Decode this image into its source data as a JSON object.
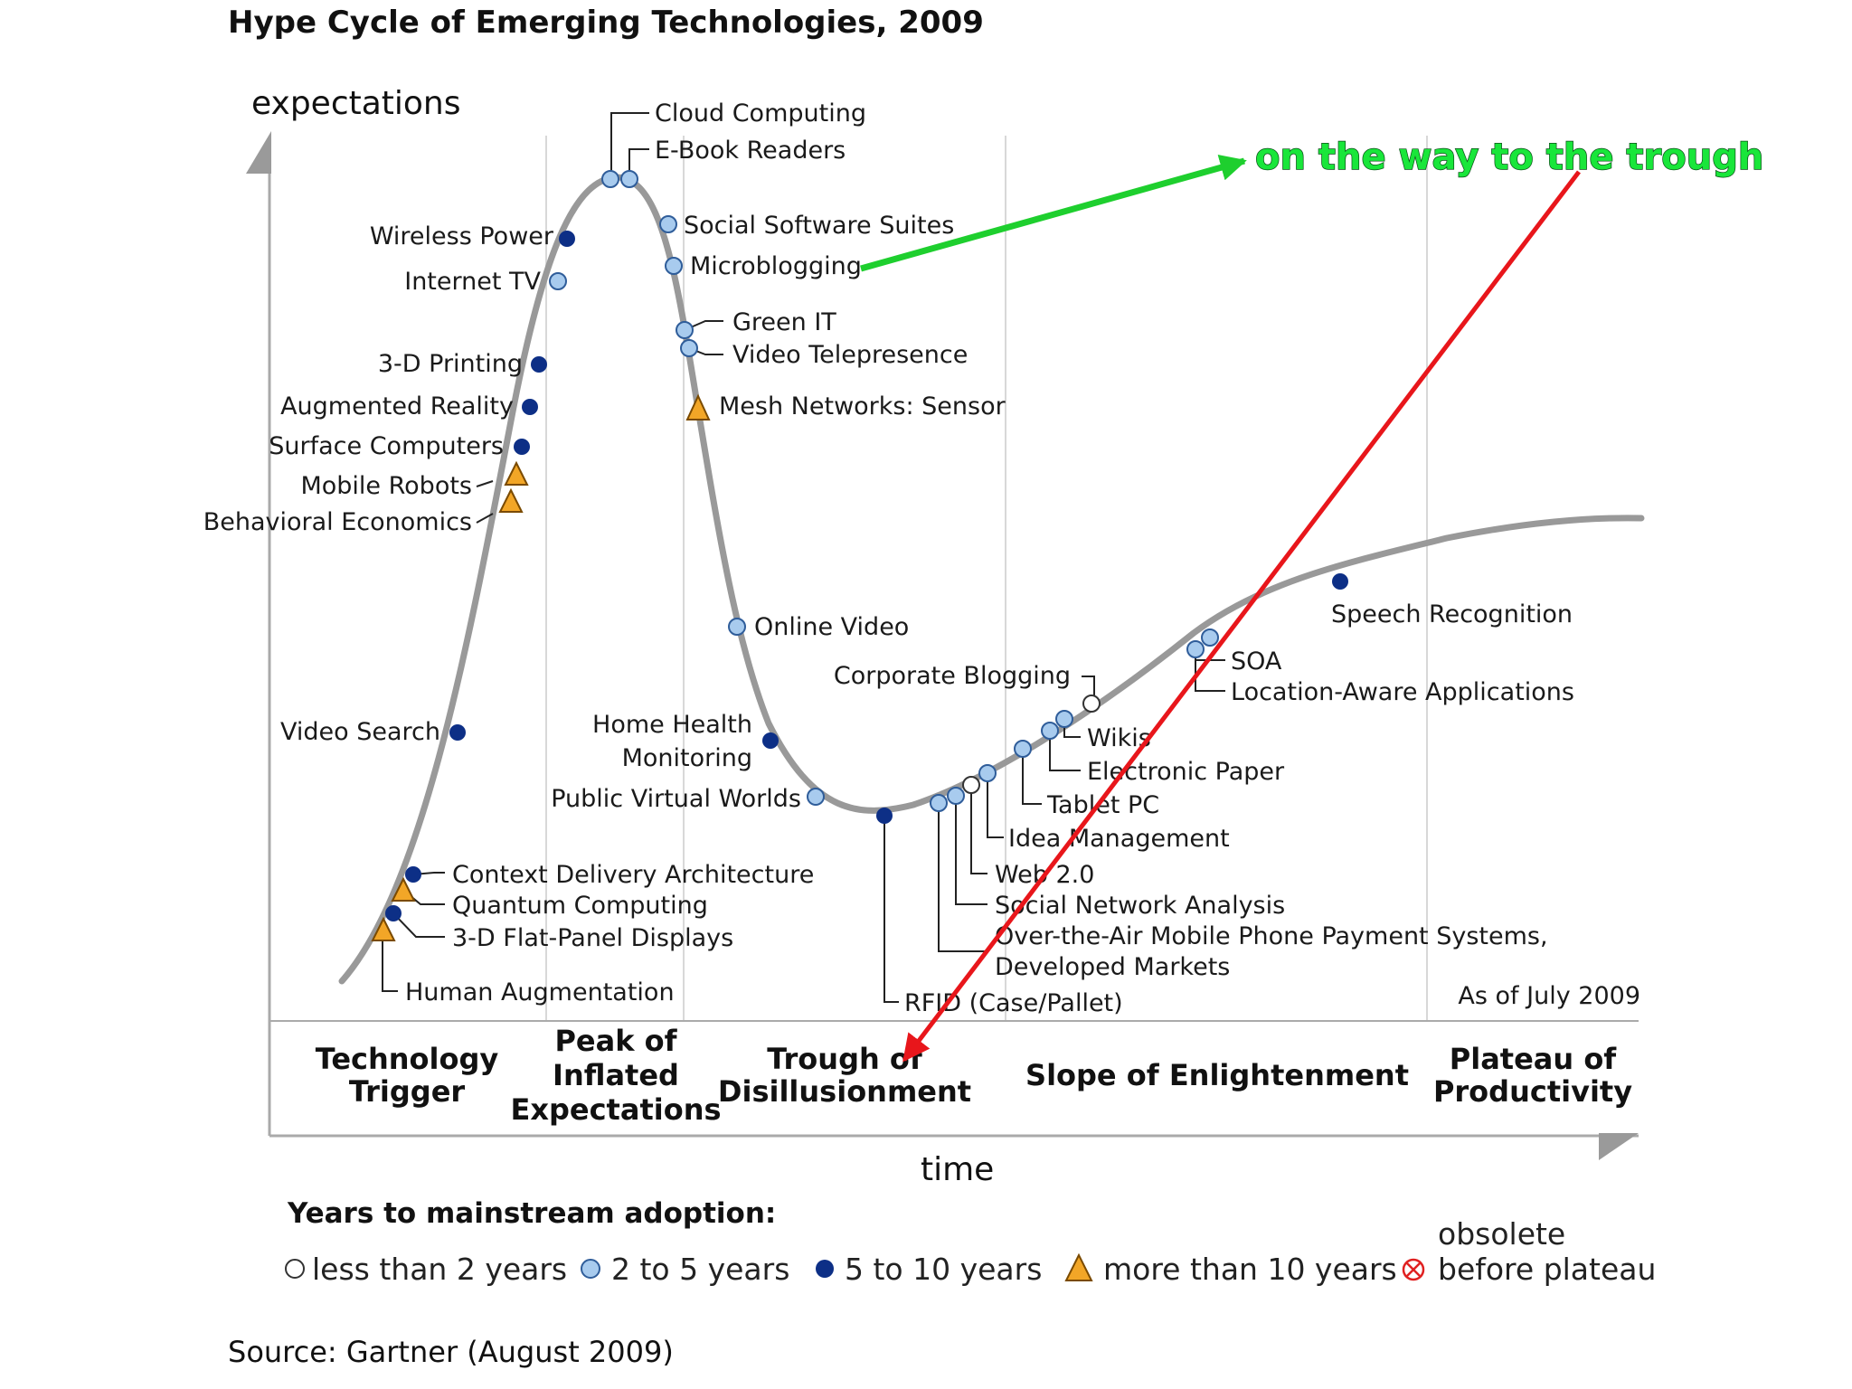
{
  "title": "Hype Cycle of Emerging Technologies, 2009",
  "y_axis_label": "expectations",
  "x_axis_label": "time",
  "as_of": "As of July 2009",
  "phases": {
    "trigger": [
      "Technology",
      "Trigger"
    ],
    "peak": [
      "Peak of",
      "Inflated",
      "Expectations"
    ],
    "trough": [
      "Trough of",
      "Disillusionment"
    ],
    "slope": [
      "Slope of Enlightenment"
    ],
    "plateau": [
      "Plateau of",
      "Productivity"
    ]
  },
  "technologies": {
    "cloud_computing": {
      "label": "Cloud Computing",
      "category": "2 to 5 years"
    },
    "ebook_readers": {
      "label": "E-Book Readers",
      "category": "2 to 5 years"
    },
    "social_software_suites": {
      "label": "Social Software Suites",
      "category": "2 to 5 years"
    },
    "microblogging": {
      "label": "Microblogging",
      "category": "2 to 5 years"
    },
    "green_it": {
      "label": "Green IT",
      "category": "2 to 5 years"
    },
    "video_telepresence": {
      "label": "Video Telepresence",
      "category": "2 to 5 years"
    },
    "mesh_networks": {
      "label": "Mesh Networks: Sensor",
      "category": "more than 10 years"
    },
    "wireless_power": {
      "label": "Wireless Power",
      "category": "5 to 10 years"
    },
    "internet_tv": {
      "label": "Internet TV",
      "category": "2 to 5 years"
    },
    "printing_3d": {
      "label": "3-D Printing",
      "category": "5 to 10 years"
    },
    "augmented_reality": {
      "label": "Augmented Reality",
      "category": "5 to 10 years"
    },
    "surface_computers": {
      "label": "Surface Computers",
      "category": "5 to 10 years"
    },
    "mobile_robots": {
      "label": "Mobile Robots",
      "category": "more than 10 years"
    },
    "behavioral_economics": {
      "label": "Behavioral Economics",
      "category": "more than 10 years"
    },
    "video_search": {
      "label": "Video Search",
      "category": "5 to 10 years"
    },
    "context_delivery": {
      "label": "Context Delivery Architecture",
      "category": "5 to 10 years"
    },
    "quantum_computing": {
      "label": "Quantum Computing",
      "category": "more than 10 years"
    },
    "flat_panel_3d": {
      "label": "3-D Flat-Panel Displays",
      "category": "5 to 10 years"
    },
    "human_augmentation": {
      "label": "Human Augmentation",
      "category": "more than 10 years"
    },
    "online_video": {
      "label": "Online Video",
      "category": "2 to 5 years"
    },
    "home_health_monitoring": {
      "label_lines": [
        "Home Health",
        "Monitoring"
      ],
      "category": "5 to 10 years"
    },
    "public_virtual_worlds": {
      "label": "Public Virtual Worlds",
      "category": "2 to 5 years"
    },
    "rfid": {
      "label": "RFID (Case/Pallet)",
      "category": "5 to 10 years"
    },
    "corporate_blogging": {
      "label": "Corporate Blogging",
      "category": "less than 2 years"
    },
    "wikis": {
      "label": "Wikis",
      "category": "2 to 5 years"
    },
    "electronic_paper": {
      "label": "Electronic Paper",
      "category": "2 to 5 years"
    },
    "tablet_pc": {
      "label": "Tablet PC",
      "category": "2 to 5 years"
    },
    "idea_management": {
      "label": "Idea Management",
      "category": "2 to 5 years"
    },
    "web_20": {
      "label": "Web 2.0",
      "category": "less than 2 years"
    },
    "social_network_analysis": {
      "label": "Social Network Analysis",
      "category": "2 to 5 years"
    },
    "ota_payments": {
      "label_lines": [
        "Over-the-Air Mobile Phone Payment Systems,",
        "Developed Markets"
      ],
      "category": "2 to 5 years"
    },
    "soa": {
      "label": "SOA",
      "category": "2 to 5 years"
    },
    "location_aware": {
      "label": "Location-Aware Applications",
      "category": "2 to 5 years"
    },
    "speech_recognition": {
      "label": "Speech Recognition",
      "category": "5 to 10 years"
    }
  },
  "annotation": "on the way to the trough",
  "legend": {
    "title": "Years to mainstream adoption:",
    "items": [
      {
        "label": "less than 2 years"
      },
      {
        "label": "2 to 5 years"
      },
      {
        "label": "5 to 10 years"
      },
      {
        "label": "more than 10 years"
      },
      {
        "label_lines": [
          "obsolete",
          "before plateau"
        ]
      }
    ]
  },
  "source": "Source: Gartner (August 2009)",
  "colors": {
    "curve": "#999999",
    "dark_marker": "#0d2f86",
    "light_marker": "#a8cbee",
    "triangle": "#f2a627",
    "green_arrow": "#1ecf2e",
    "red_arrow": "#e8161b",
    "obsolete": "#e02020"
  }
}
